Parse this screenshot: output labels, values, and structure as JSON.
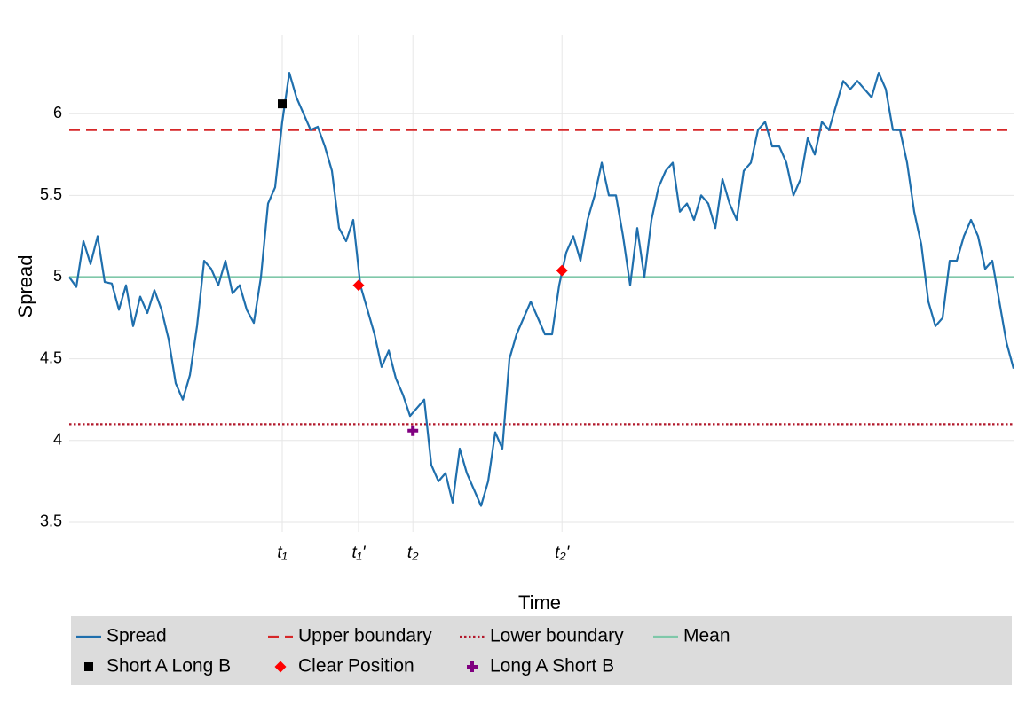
{
  "chart_data": {
    "type": "line",
    "xlabel": "Time",
    "ylabel": "Spread",
    "xlim": [
      0,
      133
    ],
    "ylim": [
      3.44,
      6.37
    ],
    "yticks": [
      3.5,
      4,
      4.5,
      5,
      5.5,
      6
    ],
    "xticks": [
      {
        "value": 30,
        "label": "t₁"
      },
      {
        "value": 40.75,
        "label": "t₁'"
      },
      {
        "value": 48.4,
        "label": "t₂"
      },
      {
        "value": 69.4,
        "label": "t₂'"
      }
    ],
    "grid": true,
    "series": [
      {
        "name": "Spread",
        "color": "#1f6fad",
        "x": [
          0,
          1,
          2,
          3,
          4,
          5,
          6,
          7,
          8,
          9,
          10,
          11,
          12,
          13,
          14,
          15,
          16,
          17,
          18,
          19,
          20,
          21,
          22,
          23,
          24,
          25,
          26,
          27,
          28,
          29,
          30,
          31,
          32,
          33,
          34,
          35,
          36,
          37,
          38,
          39,
          40,
          41,
          42,
          43,
          44,
          45,
          46,
          47,
          48,
          49,
          50,
          51,
          52,
          53,
          54,
          55,
          56,
          57,
          58,
          59,
          60,
          61,
          62,
          63,
          64,
          65,
          66,
          67,
          68,
          69,
          70,
          71,
          72,
          73,
          74,
          75,
          76,
          77,
          78,
          79,
          80,
          81,
          82,
          83,
          84,
          85,
          86,
          87,
          88,
          89,
          90,
          91,
          92,
          93,
          94,
          95,
          96,
          97,
          98,
          99,
          100,
          101,
          102,
          103,
          104,
          105,
          106,
          107,
          108,
          109,
          110,
          111,
          112,
          113,
          114,
          115,
          116,
          117,
          118,
          119,
          120,
          121,
          122,
          123,
          124,
          125,
          126,
          127,
          128,
          129,
          130,
          131,
          132,
          133
        ],
        "values": [
          5.0,
          4.94,
          5.22,
          5.08,
          5.25,
          4.97,
          4.96,
          4.8,
          4.95,
          4.7,
          4.88,
          4.78,
          4.92,
          4.8,
          4.62,
          4.35,
          4.25,
          4.4,
          4.7,
          5.1,
          5.05,
          4.95,
          5.1,
          4.9,
          4.95,
          4.8,
          4.72,
          5.0,
          5.45,
          5.55,
          5.95,
          6.25,
          6.1,
          6.0,
          5.9,
          5.92,
          5.8,
          5.65,
          5.3,
          5.22,
          5.35,
          4.95,
          4.8,
          4.65,
          4.45,
          4.55,
          4.38,
          4.28,
          4.15,
          4.2,
          4.25,
          3.85,
          3.75,
          3.8,
          3.62,
          3.95,
          3.8,
          3.7,
          3.6,
          3.75,
          4.05,
          3.95,
          4.5,
          4.65,
          4.75,
          4.85,
          4.75,
          4.65,
          4.65,
          4.95,
          5.15,
          5.25,
          5.1,
          5.35,
          5.5,
          5.7,
          5.5,
          5.5,
          5.25,
          4.95,
          5.3,
          5.0,
          5.35,
          5.55,
          5.65,
          5.7,
          5.4,
          5.45,
          5.35,
          5.5,
          5.45,
          5.3,
          5.6,
          5.45,
          5.35,
          5.65,
          5.7,
          5.9,
          5.95,
          5.8,
          5.8,
          5.7,
          5.5,
          5.6,
          5.85,
          5.75,
          5.95,
          5.9,
          6.05,
          6.2,
          6.15,
          6.2,
          6.15,
          6.1,
          6.25,
          6.15,
          5.9,
          5.9,
          5.7,
          5.4,
          5.2,
          4.85,
          4.7,
          4.75,
          5.1,
          5.1,
          5.25,
          5.35,
          5.25,
          5.05,
          5.1,
          4.85,
          4.6,
          4.44
        ]
      }
    ],
    "hlines": [
      {
        "name": "Upper boundary",
        "value": 5.9,
        "color": "#d62728",
        "style": "dashed"
      },
      {
        "name": "Lower boundary",
        "value": 4.1,
        "color": "#b2182b",
        "style": "dotted"
      },
      {
        "name": "Mean",
        "value": 5,
        "color": "#7fc8a9",
        "style": "solid"
      }
    ],
    "markers": [
      {
        "name": "Short A Long B",
        "color": "#000000",
        "shape": "square",
        "x": [
          30
        ],
        "values": [
          6.06
        ]
      },
      {
        "name": "Clear Position",
        "color": "#ff0000",
        "shape": "diamond",
        "x": [
          40.75,
          69.4
        ],
        "values": [
          4.95,
          5.04
        ]
      },
      {
        "name": "Long A Short B",
        "color": "#800080",
        "shape": "plus",
        "x": [
          48.4
        ],
        "values": [
          4.06
        ]
      }
    ]
  }
}
